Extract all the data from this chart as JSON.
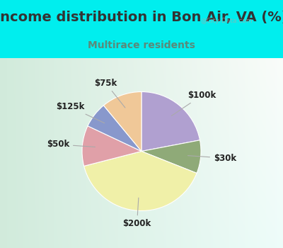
{
  "title": "Income distribution in Bon Air, VA (%)",
  "subtitle": "Multirace residents",
  "title_color": "#333333",
  "subtitle_color": "#5a8a7a",
  "background_cyan": "#00EEEE",
  "slices": [
    {
      "label": "$100k",
      "value": 22,
      "color": "#b0a0d0"
    },
    {
      "label": "$30k",
      "value": 9,
      "color": "#8faa78"
    },
    {
      "label": "$200k",
      "value": 40,
      "color": "#f0f0a8"
    },
    {
      "label": "$50k",
      "value": 11,
      "color": "#e0a0a8"
    },
    {
      "label": "$125k",
      "value": 7,
      "color": "#8898cc"
    },
    {
      "label": "$75k",
      "value": 11,
      "color": "#f0c898"
    }
  ],
  "label_fontsize": 8.5,
  "title_fontsize": 14,
  "subtitle_fontsize": 10,
  "watermark": "@City-Data.com",
  "startangle": 90
}
